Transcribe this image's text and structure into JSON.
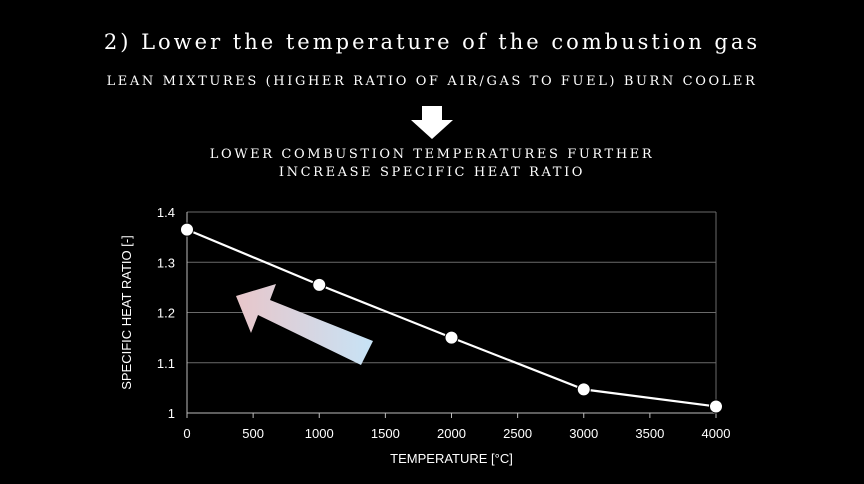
{
  "slide": {
    "title": "2) Lower the temperature of the combustion gas",
    "subtitle": "LEAN MIXTURES (HIGHER RATIO OF AIR/GAS TO FUEL) BURN COOLER",
    "note_line1": "LOWER COMBUSTION TEMPERATURES FURTHER",
    "note_line2": "INCREASE SPECIFIC HEAT RATIO",
    "arrow_icon": "down-arrow-icon"
  },
  "chart_data": {
    "type": "line",
    "xlabel": "TEMPERATURE [°C]",
    "ylabel": "SPECIFIC HEAT RATIO [-]",
    "xlim": [
      0,
      4000
    ],
    "ylim": [
      1,
      1.4
    ],
    "xticks": [
      0,
      500,
      1000,
      1500,
      2000,
      2500,
      3000,
      3500,
      4000
    ],
    "yticks": [
      "1",
      "1.1",
      "1.2",
      "1.3",
      "1.4"
    ],
    "grid": true,
    "series": [
      {
        "x": [
          0,
          1000,
          2000,
          3000,
          4000
        ],
        "y": [
          1.365,
          1.255,
          1.15,
          1.047,
          1.013
        ]
      }
    ],
    "colors": {
      "line": "#ffffff",
      "marker": "#ffffff",
      "grid": "#6a6a6a",
      "arrow_start": "#c7e3f6",
      "arrow_end": "#e8c6ca"
    }
  }
}
